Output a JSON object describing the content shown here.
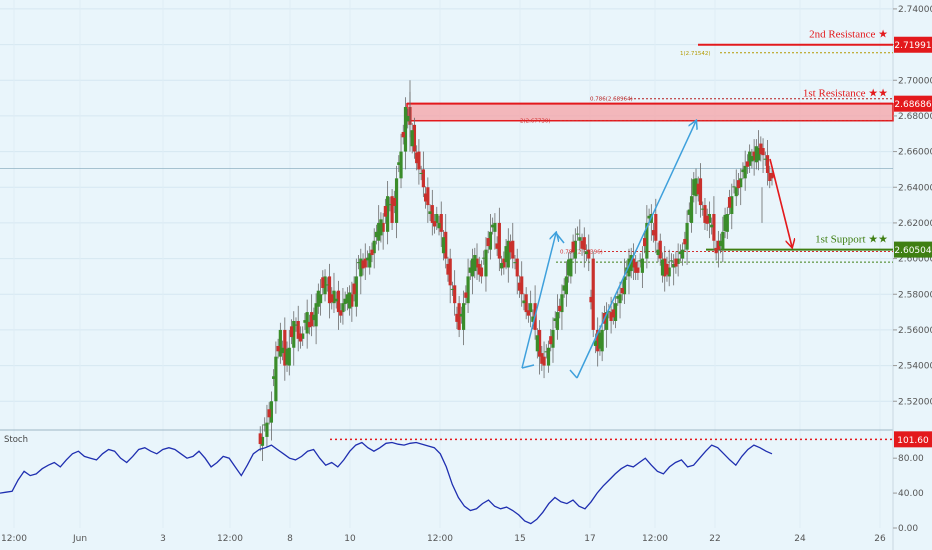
{
  "chart_data": {
    "type": "candlestick",
    "price_axis": {
      "range": [
        2.505,
        2.745
      ],
      "ticks": [
        "2.74000",
        "2.72000",
        "2.70000",
        "2.68000",
        "2.66000",
        "2.64000",
        "2.62000",
        "2.60000",
        "2.58000",
        "2.56000",
        "2.54000",
        "2.52000"
      ]
    },
    "time_axis": {
      "ticks": [
        "12:00",
        "Jun",
        "3",
        "12:00",
        "8",
        "10",
        "12:00",
        "15",
        "17",
        "12:00",
        "22",
        "24",
        "26"
      ]
    },
    "levels": [
      {
        "label": "2nd Resistance ★",
        "price": 2.71991,
        "box": "2.71991",
        "color": "#e3191c"
      },
      {
        "label": "1st Resistance ★★",
        "price": 2.68686,
        "box": "2.68686",
        "color": "#e3191c"
      },
      {
        "label": "1st Support ★★",
        "price": 2.60504,
        "box": "2.60504",
        "color": "#3f7f13"
      }
    ],
    "fib_labels": [
      {
        "text": "1(2.71542)",
        "price": 2.71542,
        "color": "#b39a00"
      },
      {
        "text": "0.786(2.68964)",
        "price": 2.68964,
        "color": "#b71c1c"
      },
      {
        "text": "2(2.67730)",
        "price": 2.6773,
        "color": "#d32f2f"
      },
      {
        "text": "0.786(2.60396)",
        "price": 2.60396,
        "color": "#d32f2f"
      }
    ],
    "horizontal_line_price": 2.6505,
    "resistance_zone": [
      2.6773,
      2.68686
    ],
    "secondary_support_price": 2.598,
    "path": [
      2.495,
      2.5,
      2.508,
      2.52,
      2.545,
      2.56,
      2.54,
      2.55,
      2.565,
      2.555,
      2.558,
      2.57,
      2.562,
      2.575,
      2.58,
      2.59,
      2.575,
      2.582,
      2.57,
      2.575,
      2.58,
      2.573,
      2.59,
      2.6,
      2.595,
      2.603,
      2.61,
      2.62,
      2.615,
      2.635,
      2.62,
      2.645,
      2.66,
      2.685,
      2.675,
      2.66,
      2.65,
      2.64,
      2.63,
      2.62,
      2.625,
      2.615,
      2.6,
      2.585,
      2.575,
      2.56,
      2.575,
      2.59,
      2.6,
      2.595,
      2.59,
      2.605,
      2.615,
      2.62,
      2.6,
      2.595,
      2.61,
      2.6,
      2.59,
      2.58,
      2.57,
      2.575,
      2.56,
      2.545,
      2.54,
      2.55,
      2.56,
      2.57,
      2.58,
      2.59,
      2.6,
      2.61,
      2.612,
      2.605,
      2.6,
      2.56,
      2.548,
      2.56,
      2.57,
      2.565,
      2.575,
      2.58,
      2.59,
      2.6,
      2.595,
      2.592,
      2.6,
      2.62,
      2.625,
      2.61,
      2.6,
      2.59,
      2.595,
      2.597,
      2.6,
      2.605,
      2.62,
      2.635,
      2.645,
      2.63,
      2.62,
      2.625,
      2.61,
      2.605,
      2.615,
      2.625,
      2.635,
      2.64,
      2.645,
      2.652,
      2.66,
      2.655,
      2.662,
      2.658,
      2.648,
      2.645
    ],
    "arrows": [
      {
        "kind": "up",
        "color": "#3ea0dc",
        "from": [
          2.545,
          2.5405
        ],
        "to": [
          2.552,
          2.61
        ]
      },
      {
        "kind": "swing",
        "color": "#3ea0dc",
        "from": [
          2.552,
          2.53
        ],
        "to": [
          2.67,
          2.676
        ]
      },
      {
        "kind": "down",
        "color": "#e3191c",
        "from": [
          2.655,
          2.655
        ],
        "to": [
          2.6,
          2.605
        ]
      }
    ],
    "stoch": {
      "label": "Stoch",
      "ticks": [
        "80.00",
        "40.00",
        "0.00"
      ],
      "level_box": "101.60",
      "level": 101.6,
      "range": [
        0,
        110
      ],
      "values": [
        40,
        41,
        42,
        55,
        65,
        60,
        62,
        68,
        72,
        75,
        70,
        78,
        85,
        88,
        82,
        80,
        78,
        85,
        90,
        88,
        80,
        75,
        82,
        90,
        92,
        88,
        85,
        90,
        92,
        90,
        85,
        80,
        82,
        88,
        80,
        70,
        75,
        82,
        80,
        70,
        60,
        72,
        85,
        90,
        92,
        95,
        90,
        85,
        80,
        78,
        82,
        88,
        90,
        80,
        72,
        75,
        70,
        78,
        88,
        95,
        98,
        92,
        88,
        92,
        97,
        98,
        96,
        95,
        97,
        98,
        96,
        94,
        92,
        85,
        70,
        50,
        35,
        25,
        20,
        22,
        28,
        32,
        25,
        22,
        24,
        20,
        15,
        8,
        5,
        10,
        18,
        28,
        35,
        30,
        28,
        32,
        25,
        22,
        30,
        40,
        48,
        55,
        62,
        68,
        72,
        70,
        75,
        80,
        72,
        65,
        62,
        70,
        75,
        78,
        70,
        72,
        80,
        88,
        95,
        92,
        85,
        78,
        72,
        82,
        90,
        95,
        92,
        88,
        85
      ],
      "highlight": 101.6
    }
  }
}
